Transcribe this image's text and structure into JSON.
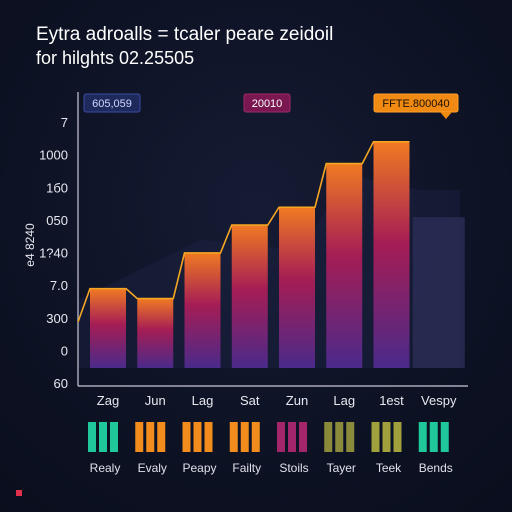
{
  "header": {
    "title_line1": "Eytra adroalls = tcaler peare zeidoil",
    "title_line2": "for hilghts 02.25505"
  },
  "chart_data": {
    "type": "bar",
    "title": "Eytra adroalls = tcaler peare zeidoil",
    "subtitle": "for hilghts 02.25505",
    "ylabel": "e4 8240",
    "y_tick_labels": [
      "7",
      "1000",
      "1б0",
      "050",
      "1?40",
      "7.0",
      "300",
      "0",
      "60"
    ],
    "categories": [
      "Zag",
      "Jun",
      "Lag",
      "Sat",
      "Zun",
      "Lag",
      "1est",
      "Vespy"
    ],
    "values": [
      40,
      35,
      58,
      72,
      81,
      103,
      114,
      76
    ],
    "ylim": [
      0,
      130
    ],
    "grid": false,
    "badges": [
      {
        "text": "605,059",
        "bg": "#1e2a5c",
        "border": "#3a4ba0",
        "fg": "#cfd6ff"
      },
      {
        "text": "20010",
        "bg": "#7a1650",
        "border": "#9a2a6a",
        "fg": "#ffffff"
      },
      {
        "text": "FFTE.800040",
        "bg": "#f08a12",
        "border": "#ffa030",
        "fg": "#1a1000"
      }
    ],
    "legend": {
      "placement": "bottom",
      "labels": [
        "Realy",
        "Evaly",
        "Peapy",
        "Failty",
        "Stoils",
        "Tayer",
        "Teek",
        "Bends"
      ],
      "colors": [
        "#1fc79a",
        "#f28c1c",
        "#f28c1c",
        "#f28c1c",
        "#a3256a",
        "#8a8a3a",
        "#a0a03c",
        "#1fc79a"
      ]
    },
    "colors": {
      "bar_top": "#f07a22",
      "bar_mid": "#a51d55",
      "bar_bottom": "#4a2a8a",
      "line": "#f5a623",
      "axis": "#c8c8d8",
      "ghost_bar": "#2a2d55"
    }
  }
}
